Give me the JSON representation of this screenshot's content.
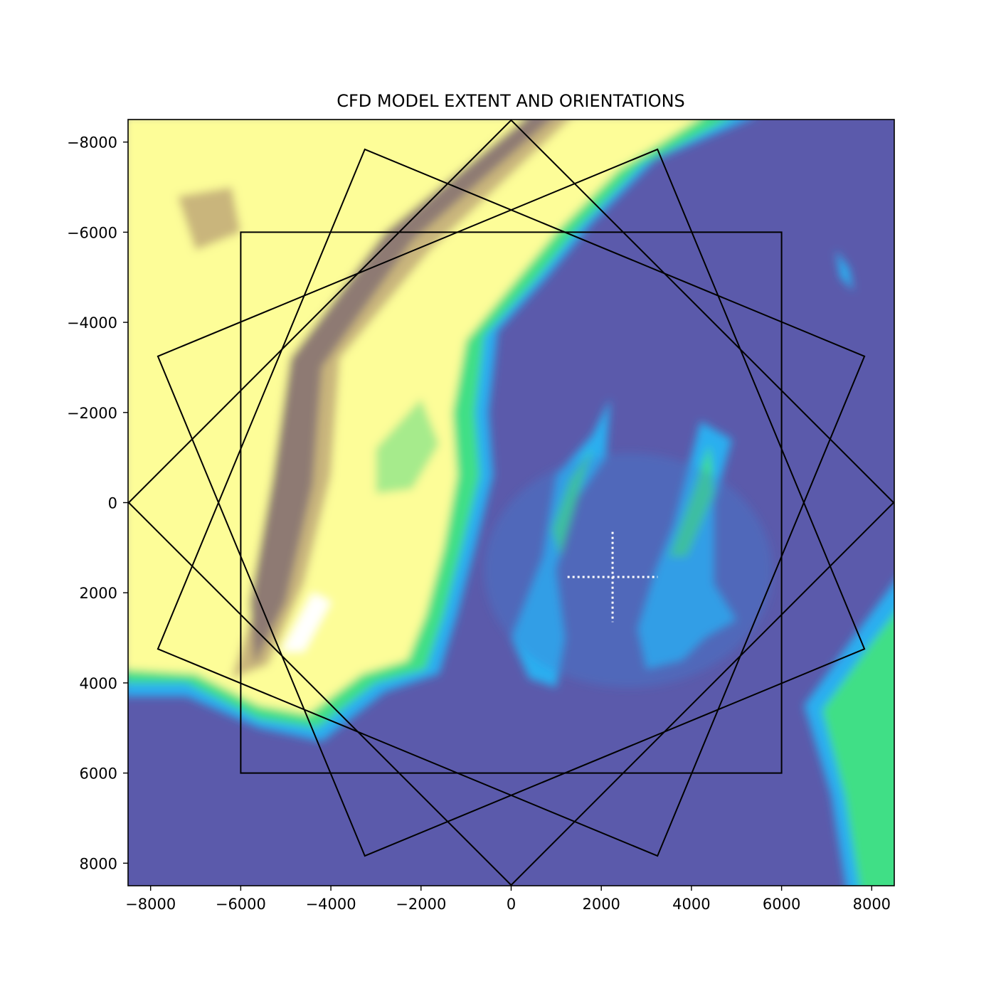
{
  "chart_data": {
    "type": "map",
    "title": "CFD MODEL EXTENT AND ORIENTATIONS",
    "xlabel": "",
    "ylabel": "",
    "xlim": [
      -8500,
      8500
    ],
    "ylim": [
      8500,
      -8500
    ],
    "y_inverted": true,
    "grid": false,
    "x_ticks": [
      {
        "value": -8000,
        "label": "−8000"
      },
      {
        "value": -6000,
        "label": "−6000"
      },
      {
        "value": -4000,
        "label": "−4000"
      },
      {
        "value": -2000,
        "label": "−2000"
      },
      {
        "value": 0,
        "label": "0"
      },
      {
        "value": 2000,
        "label": "2000"
      },
      {
        "value": 4000,
        "label": "4000"
      },
      {
        "value": 6000,
        "label": "6000"
      },
      {
        "value": 8000,
        "label": "8000"
      }
    ],
    "y_ticks": [
      {
        "value": -8000,
        "label": "−8000"
      },
      {
        "value": -6000,
        "label": "−6000"
      },
      {
        "value": -4000,
        "label": "−4000"
      },
      {
        "value": -2000,
        "label": "−2000"
      },
      {
        "value": 0,
        "label": "0"
      },
      {
        "value": 2000,
        "label": "2000"
      },
      {
        "value": 4000,
        "label": "4000"
      },
      {
        "value": 6000,
        "label": "6000"
      },
      {
        "value": 8000,
        "label": "8000"
      }
    ],
    "model_extent": {
      "center": [
        0,
        0
      ],
      "half_size": 6000,
      "rotations_deg": [
        0,
        22.5,
        45,
        67.5
      ],
      "outline_color": "#000000"
    },
    "target_marker": {
      "x": 2250,
      "y": 1650,
      "half_length": 1000,
      "color": "#ffffff",
      "style": "dotted"
    },
    "terrain": {
      "colormap": "terrain",
      "water_color": "#5b5aab",
      "colors": {
        "deep_water": "#5b5aab",
        "shallow": "#3d82d4",
        "coast": "#2aaef0",
        "lowland": "#3fdf86",
        "plain": "#a6eb8c",
        "hills": "#fdfd98",
        "upland": "#c9b57c",
        "mountain": "#8e7a73",
        "peak": "#ffffff"
      }
    }
  }
}
